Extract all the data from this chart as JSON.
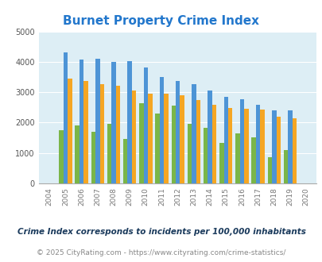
{
  "title": "Burnet Property Crime Index",
  "years": [
    2004,
    2005,
    2006,
    2007,
    2008,
    2009,
    2010,
    2011,
    2012,
    2013,
    2014,
    2015,
    2016,
    2017,
    2018,
    2019,
    2020
  ],
  "burnet": [
    0,
    1750,
    1900,
    1700,
    1970,
    1450,
    2650,
    2300,
    2550,
    1970,
    1830,
    1340,
    1650,
    1520,
    870,
    1090,
    0
  ],
  "texas": [
    0,
    4300,
    4070,
    4100,
    4000,
    4030,
    3820,
    3490,
    3370,
    3270,
    3050,
    2840,
    2780,
    2580,
    2400,
    2400,
    0
  ],
  "national": [
    0,
    3450,
    3360,
    3260,
    3220,
    3060,
    2960,
    2940,
    2890,
    2730,
    2590,
    2490,
    2460,
    2430,
    2200,
    2140,
    0
  ],
  "burnet_color": "#7ab648",
  "texas_color": "#4d94d6",
  "national_color": "#f5a623",
  "bg_color": "#ddeef5",
  "ylim": [
    0,
    5000
  ],
  "yticks": [
    0,
    1000,
    2000,
    3000,
    4000,
    5000
  ],
  "subtitle": "Crime Index corresponds to incidents per 100,000 inhabitants",
  "footer": "© 2025 CityRating.com - https://www.cityrating.com/crime-statistics/",
  "title_color": "#2277cc",
  "legend_text_color": "#5a3030",
  "subtitle_color": "#1a3a5c",
  "footer_color": "#888888",
  "footer_link_color": "#4488cc"
}
